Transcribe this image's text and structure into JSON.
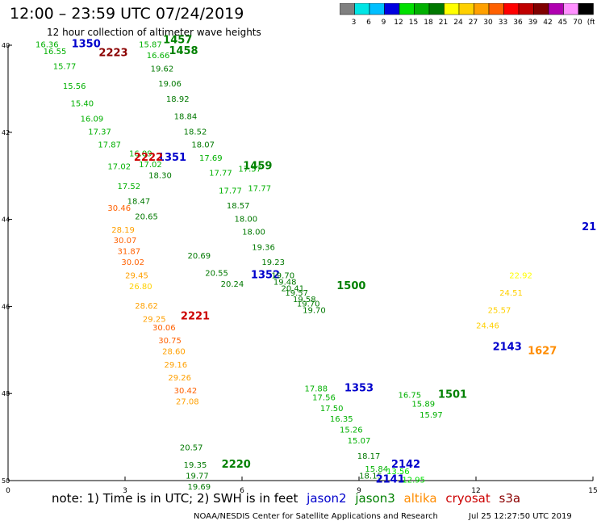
{
  "header": {
    "title": "12:00 – 23:59 UTC 07/24/2019",
    "subtitle": "12 hour collection of altimeter wave heights"
  },
  "colorbar": {
    "labels": [
      "3",
      "6",
      "9",
      "12",
      "15",
      "18",
      "21",
      "24",
      "27",
      "30",
      "33",
      "36",
      "39",
      "42",
      "45",
      "70",
      "(ft)"
    ],
    "colors": [
      "#808080",
      "#00e5e5",
      "#00bfff",
      "#0000e0",
      "#00e000",
      "#00b000",
      "#007800",
      "#ffff00",
      "#ffd000",
      "#ffa000",
      "#ff6000",
      "#ff0000",
      "#c00000",
      "#800000",
      "#b000b0",
      "#ff90ff",
      "#000000"
    ]
  },
  "colors": {
    "jason2": "#0000cc",
    "jason3": "#008000",
    "altika": "#ff8c00",
    "cryosat": "#cc0000",
    "s3a": "#8b0000"
  },
  "chart_data": {
    "type": "scatter",
    "x_ticks": [
      "0",
      "3",
      "6",
      "9",
      "12",
      "15"
    ],
    "y_ticks": [
      "40",
      "42",
      "44",
      "46",
      "48",
      "50"
    ],
    "xlim": [
      0,
      15
    ],
    "ylim": [
      50,
      40
    ],
    "grid": false,
    "tracks": [
      {
        "satellite": "jason2",
        "pass": "1350",
        "time_label": {
          "text": "1350",
          "x": 2.0,
          "y": 40.05
        },
        "points": [
          [
            1.0,
            40.05,
            "16.36"
          ],
          [
            1.2,
            40.2,
            "16.55"
          ],
          [
            1.45,
            40.55,
            "15.77"
          ],
          [
            1.7,
            41.0,
            "15.56"
          ],
          [
            1.9,
            41.4,
            "15.40"
          ],
          [
            2.15,
            41.75,
            "16.09"
          ],
          [
            2.35,
            42.05,
            "17.37"
          ],
          [
            2.6,
            42.35,
            "17.87"
          ],
          [
            2.85,
            42.85,
            "17.02"
          ],
          [
            3.1,
            43.3,
            "17.52"
          ],
          [
            3.35,
            43.65,
            "18.47"
          ],
          [
            3.55,
            44.0,
            "20.65"
          ]
        ]
      },
      {
        "satellite": "jason2",
        "pass": "1351",
        "time_label": {
          "text": "1351",
          "x": 4.2,
          "y": 42.65
        },
        "points": [
          [
            3.4,
            42.55,
            "16.09"
          ],
          [
            3.65,
            42.8,
            "17.02"
          ],
          [
            3.9,
            43.05,
            "18.30"
          ]
        ]
      },
      {
        "satellite": "jason2",
        "pass": "1352",
        "time_label": {
          "text": "1352",
          "x": 6.6,
          "y": 45.35
        },
        "points": [
          [
            4.9,
            44.9,
            "20.69"
          ],
          [
            5.35,
            45.3,
            "20.55"
          ],
          [
            5.75,
            45.55,
            "20.24"
          ]
        ]
      },
      {
        "satellite": "jason2",
        "pass": "1353",
        "time_label": {
          "text": "1353",
          "x": 9.0,
          "y": 47.95
        },
        "points": [
          [
            7.9,
            47.95,
            "17.88"
          ],
          [
            8.1,
            48.15,
            "17.56"
          ],
          [
            8.3,
            48.4,
            "17.50"
          ],
          [
            8.55,
            48.65,
            "16.35"
          ],
          [
            8.8,
            48.9,
            "15.26"
          ],
          [
            9.0,
            49.15,
            "15.07"
          ],
          [
            9.25,
            49.5,
            "18.17"
          ],
          [
            9.45,
            49.8,
            "15.84"
          ]
        ]
      },
      {
        "satellite": "jason2",
        "pass": "2141",
        "time_label": {
          "text": "2141",
          "x": 9.8,
          "y": 50.05
        },
        "points": [
          [
            9.3,
            49.95,
            "18.15"
          ]
        ]
      },
      {
        "satellite": "jason2",
        "pass": "2142",
        "time_label": {
          "text": "2142",
          "x": 10.2,
          "y": 49.7
        },
        "points": [
          [
            10.0,
            49.85,
            "13.56"
          ],
          [
            10.4,
            50.05,
            "12.95"
          ]
        ]
      },
      {
        "satellite": "jason2",
        "pass": "2143",
        "time_label": {
          "text": "2143",
          "x": 12.8,
          "y": 47.0
        },
        "points": []
      },
      {
        "satellite": "jason2",
        "pass": "21",
        "time_label": {
          "text": "21",
          "x": 14.9,
          "y": 44.25
        },
        "points": []
      },
      {
        "satellite": "jason3",
        "pass": "1457",
        "time_label": {
          "text": "1457",
          "x": 4.35,
          "y": 39.95
        },
        "points": [
          [
            3.65,
            40.05,
            "15.87"
          ],
          [
            3.85,
            40.3,
            "16.66"
          ],
          [
            3.95,
            40.6,
            "19.62"
          ],
          [
            4.15,
            40.95,
            "19.06"
          ],
          [
            4.35,
            41.3,
            "18.92"
          ],
          [
            4.55,
            41.7,
            "18.84"
          ],
          [
            4.8,
            42.05,
            "18.52"
          ],
          [
            5.0,
            42.35,
            "18.07"
          ],
          [
            5.2,
            42.65,
            "17.69"
          ],
          [
            5.45,
            43.0,
            "17.77"
          ],
          [
            5.7,
            43.4,
            "17.77"
          ],
          [
            5.9,
            43.75,
            "18.57"
          ],
          [
            6.1,
            44.05,
            "18.00"
          ],
          [
            6.3,
            44.35,
            "18.00"
          ],
          [
            6.55,
            44.7,
            "19.36"
          ],
          [
            6.8,
            45.05,
            "19.23"
          ],
          [
            7.05,
            45.35,
            "19.70"
          ],
          [
            7.3,
            45.65,
            "20.41"
          ],
          [
            7.6,
            45.9,
            "19.58"
          ],
          [
            7.85,
            46.15,
            "19.70"
          ]
        ]
      },
      {
        "satellite": "jason3",
        "pass": "1458",
        "time_label": {
          "text": "1458",
          "x": 4.5,
          "y": 40.2
        },
        "points": []
      },
      {
        "satellite": "jason3",
        "pass": "1459",
        "time_label": {
          "text": "1459",
          "x": 6.4,
          "y": 42.85
        },
        "points": [
          [
            6.2,
            42.9,
            "17.57"
          ],
          [
            6.45,
            43.35,
            "17.77"
          ]
        ]
      },
      {
        "satellite": "jason3",
        "pass": "1500",
        "time_label": {
          "text": "1500",
          "x": 8.8,
          "y": 45.6
        },
        "points": [
          [
            7.1,
            45.5,
            "19.48"
          ],
          [
            7.4,
            45.75,
            "19.57"
          ],
          [
            7.7,
            46.0,
            "19.70"
          ]
        ]
      },
      {
        "satellite": "jason3",
        "pass": "2220",
        "time_label": {
          "text": "2220",
          "x": 5.85,
          "y": 49.7
        },
        "points": [
          [
            4.7,
            49.3,
            "20.57"
          ],
          [
            4.8,
            49.7,
            "19.35"
          ],
          [
            4.85,
            49.95,
            "19.77"
          ],
          [
            4.9,
            50.2,
            "19.69"
          ]
        ]
      },
      {
        "satellite": "jason3",
        "pass": "1501",
        "time_label": {
          "text": "1501",
          "x": 11.4,
          "y": 48.1
        },
        "points": [
          [
            10.3,
            48.1,
            "16.75"
          ],
          [
            10.65,
            48.3,
            "15.89"
          ],
          [
            10.85,
            48.55,
            "15.97"
          ]
        ]
      },
      {
        "satellite": "altika",
        "pass": "1627",
        "time_label": {
          "text": "1627",
          "x": 13.7,
          "y": 47.1
        },
        "points": [
          [
            12.3,
            46.5,
            "24.46"
          ],
          [
            12.6,
            46.15,
            "25.57"
          ],
          [
            12.9,
            45.75,
            "24.51"
          ],
          [
            13.15,
            45.35,
            "22.92"
          ]
        ]
      },
      {
        "satellite": "cryosat",
        "pass": "2222",
        "time_label": {
          "text": "2222",
          "x": 3.6,
          "y": 42.65
        },
        "points": [
          [
            2.85,
            43.8,
            "30.46"
          ],
          [
            2.95,
            44.3,
            "28.19"
          ],
          [
            3.0,
            44.55,
            "30.07"
          ],
          [
            3.1,
            44.8,
            "31.87"
          ],
          [
            3.2,
            45.05,
            "30.02"
          ],
          [
            3.3,
            45.35,
            "29.45"
          ],
          [
            3.4,
            45.6,
            "26.80"
          ],
          [
            3.55,
            46.05,
            "28.62"
          ],
          [
            3.75,
            46.35,
            "29.25"
          ]
        ]
      },
      {
        "satellite": "cryosat",
        "pass": "2221",
        "time_label": {
          "text": "2221",
          "x": 4.8,
          "y": 46.3
        },
        "points": [
          [
            4.0,
            46.55,
            "30.06"
          ],
          [
            4.15,
            46.85,
            "30.75"
          ],
          [
            4.25,
            47.1,
            "28.60"
          ],
          [
            4.3,
            47.4,
            "29.16"
          ],
          [
            4.4,
            47.7,
            "29.26"
          ],
          [
            4.55,
            48.0,
            "30.42"
          ],
          [
            4.6,
            48.25,
            "27.08"
          ]
        ]
      },
      {
        "satellite": "s3a",
        "pass": "2223",
        "time_label": {
          "text": "2223",
          "x": 2.7,
          "y": 40.25
        },
        "points": []
      }
    ]
  },
  "notes": {
    "prefix": "note:  1) Time is in UTC; 2) SWH is in feet",
    "legend": [
      "jason2",
      "jason3",
      "altika",
      "cryosat",
      "s3a"
    ]
  },
  "footer": {
    "credit": "NOAA/NESDIS Center for Satellite Applications and Research",
    "timestamp": "Jul 25 12:27:50 UTC 2019"
  }
}
